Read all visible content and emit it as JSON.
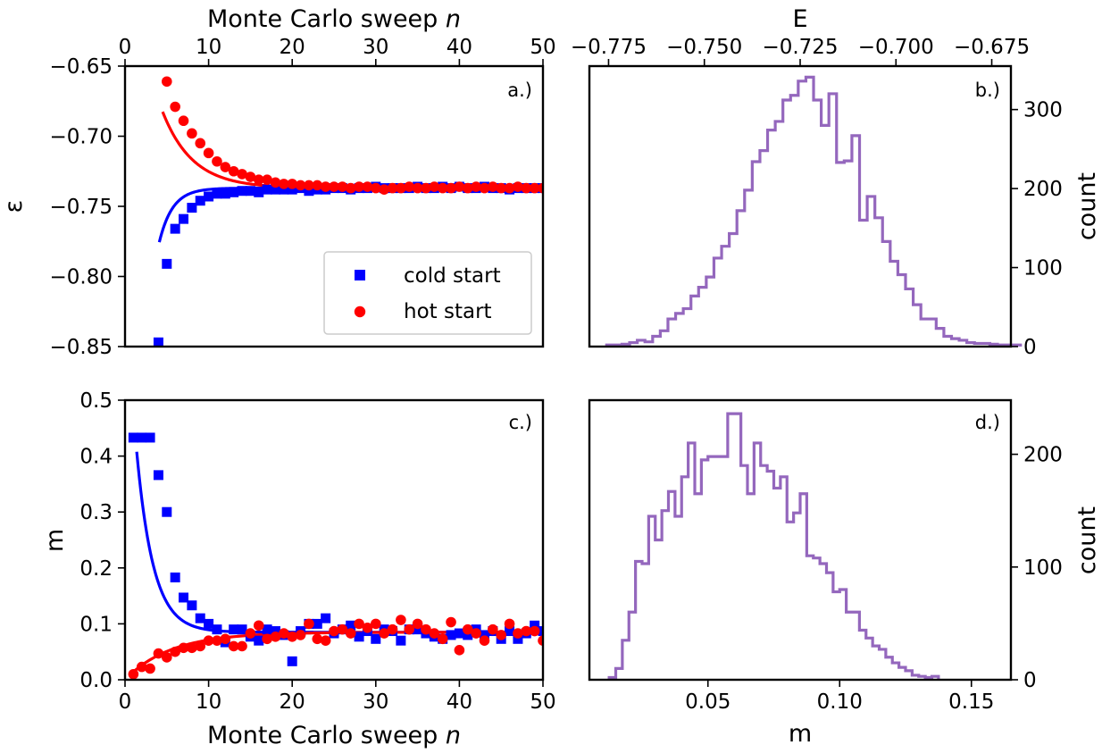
{
  "colors": {
    "cold": "#0000ff",
    "hot": "#ff0000",
    "hist": "#9467bd",
    "axis": "#000000"
  },
  "chart_data": [
    {
      "id": "a",
      "type": "scatter",
      "panel_label": "a.)",
      "title": "",
      "xlabel_top": "Monte Carlo sweep n",
      "ylabel": "ε",
      "xlim": [
        0,
        50
      ],
      "ylim": [
        -0.85,
        -0.65
      ],
      "xticks": [
        0,
        10,
        20,
        30,
        40,
        50
      ],
      "xticklabels": [
        "0",
        "10",
        "20",
        "30",
        "40",
        "50"
      ],
      "yticks": [
        -0.85,
        -0.8,
        -0.75,
        -0.7,
        -0.65
      ],
      "yticklabels": [
        "−0.85",
        "−0.80",
        "−0.75",
        "−0.70",
        "−0.65"
      ],
      "legend": {
        "location": "lower-right",
        "entries": [
          {
            "label": "cold start",
            "marker": "square",
            "color": "#0000ff"
          },
          {
            "label": "hot start",
            "marker": "circle",
            "color": "#ff0000"
          }
        ]
      },
      "series": [
        {
          "name": "cold start",
          "marker": "square",
          "color": "#0000ff",
          "x": [
            4,
            5,
            6,
            7,
            8,
            9,
            10,
            11,
            12,
            13,
            14,
            15,
            16,
            17,
            18,
            19,
            20,
            21,
            22,
            23,
            24,
            25,
            26,
            27,
            28,
            29,
            30,
            31,
            32,
            33,
            34,
            35,
            36,
            37,
            38,
            39,
            40,
            41,
            42,
            43,
            44,
            45,
            46,
            47,
            48,
            49,
            50
          ],
          "y": [
            -0.847,
            -0.791,
            -0.766,
            -0.759,
            -0.751,
            -0.746,
            -0.743,
            -0.741,
            -0.741,
            -0.74,
            -0.739,
            -0.739,
            -0.74,
            -0.738,
            -0.738,
            -0.738,
            -0.738,
            -0.737,
            -0.739,
            -0.738,
            -0.738,
            -0.737,
            -0.737,
            -0.738,
            -0.737,
            -0.737,
            -0.736,
            -0.737,
            -0.737,
            -0.737,
            -0.737,
            -0.736,
            -0.737,
            -0.737,
            -0.736,
            -0.737,
            -0.736,
            -0.737,
            -0.737,
            -0.736,
            -0.737,
            -0.737,
            -0.738,
            -0.737,
            -0.737,
            -0.737,
            -0.737
          ]
        },
        {
          "name": "hot start",
          "marker": "circle",
          "color": "#ff0000",
          "x": [
            5,
            6,
            7,
            8,
            9,
            10,
            11,
            12,
            13,
            14,
            15,
            16,
            17,
            18,
            19,
            20,
            21,
            22,
            23,
            24,
            25,
            26,
            27,
            28,
            29,
            30,
            31,
            32,
            33,
            34,
            35,
            36,
            37,
            38,
            39,
            40,
            41,
            42,
            43,
            44,
            45,
            46,
            47,
            48,
            49,
            50
          ],
          "y": [
            -0.661,
            -0.679,
            -0.689,
            -0.698,
            -0.705,
            -0.712,
            -0.718,
            -0.722,
            -0.725,
            -0.727,
            -0.729,
            -0.731,
            -0.731,
            -0.733,
            -0.734,
            -0.734,
            -0.735,
            -0.735,
            -0.735,
            -0.736,
            -0.736,
            -0.736,
            -0.737,
            -0.736,
            -0.736,
            -0.737,
            -0.738,
            -0.737,
            -0.737,
            -0.736,
            -0.737,
            -0.737,
            -0.736,
            -0.737,
            -0.737,
            -0.736,
            -0.737,
            -0.736,
            -0.737,
            -0.736,
            -0.737,
            -0.737,
            -0.736,
            -0.737,
            -0.737,
            -0.737
          ]
        }
      ],
      "fits": [
        {
          "name": "cold fit",
          "color": "#0000ff",
          "asymptote": -0.737,
          "amplitude": -0.5,
          "tau": 1.6,
          "x_range": [
            4.1,
            50
          ]
        },
        {
          "name": "hot fit",
          "color": "#ff0000",
          "asymptote": -0.737,
          "amplitude": 0.19,
          "tau": 3.6,
          "x_range": [
            4.5,
            50
          ]
        }
      ]
    },
    {
      "id": "b",
      "type": "histogram",
      "panel_label": "b.)",
      "xlabel_top": "E",
      "ylabel_right": "count",
      "xlim": [
        -0.78,
        -0.67
      ],
      "ylim": [
        0,
        355
      ],
      "xticks": [
        -0.775,
        -0.75,
        -0.725,
        -0.7,
        -0.675
      ],
      "xticklabels": [
        "−0.775",
        "−0.750",
        "−0.725",
        "−0.700",
        "−0.675"
      ],
      "yticks": [
        0,
        100,
        200,
        300
      ],
      "yticklabels": [
        "0",
        "100",
        "200",
        "300"
      ],
      "color": "#9467bd",
      "bin_start": -0.7755,
      "bin_width": 0.002,
      "counts": [
        2,
        2,
        3,
        5,
        8,
        6,
        13,
        20,
        35,
        42,
        48,
        64,
        75,
        88,
        112,
        127,
        143,
        172,
        198,
        234,
        248,
        274,
        285,
        312,
        318,
        336,
        341,
        312,
        280,
        320,
        233,
        235,
        267,
        160,
        190,
        163,
        133,
        108,
        91,
        73,
        53,
        35,
        35,
        23,
        13,
        10,
        8,
        5,
        4,
        4,
        3,
        2,
        2,
        2
      ]
    },
    {
      "id": "c",
      "type": "scatter",
      "panel_label": "c.)",
      "xlabel": "Monte Carlo sweep n",
      "ylabel": "m",
      "xlim": [
        0,
        50
      ],
      "ylim": [
        0,
        0.5
      ],
      "xticks": [
        0,
        10,
        20,
        30,
        40,
        50
      ],
      "xticklabels": [
        "0",
        "10",
        "20",
        "30",
        "40",
        "50"
      ],
      "yticks": [
        0,
        0.1,
        0.2,
        0.3,
        0.4,
        0.5
      ],
      "yticklabels": [
        "0.0",
        "0.1",
        "0.2",
        "0.3",
        "0.4",
        "0.5"
      ],
      "series": [
        {
          "name": "cold start",
          "marker": "square",
          "color": "#0000ff",
          "x": [
            1,
            2,
            3,
            4,
            5,
            6,
            7,
            8,
            9,
            10,
            11,
            12,
            13,
            14,
            15,
            16,
            17,
            18,
            19,
            20,
            21,
            22,
            23,
            24,
            25,
            26,
            27,
            28,
            29,
            30,
            31,
            32,
            33,
            34,
            35,
            36,
            37,
            38,
            39,
            40,
            41,
            42,
            43,
            44,
            45,
            46,
            47,
            48,
            49,
            50
          ],
          "y": [
            0.433,
            0.433,
            0.433,
            0.366,
            0.3,
            0.183,
            0.147,
            0.133,
            0.11,
            0.1,
            0.09,
            0.067,
            0.09,
            0.09,
            0.077,
            0.07,
            0.09,
            0.087,
            0.08,
            0.033,
            0.087,
            0.1,
            0.1,
            0.11,
            0.083,
            0.09,
            0.097,
            0.077,
            0.087,
            0.073,
            0.09,
            0.087,
            0.07,
            0.09,
            0.09,
            0.083,
            0.077,
            0.073,
            0.08,
            0.083,
            0.08,
            0.09,
            0.08,
            0.087,
            0.073,
            0.087,
            0.073,
            0.083,
            0.097,
            0.087
          ]
        },
        {
          "name": "hot start",
          "marker": "circle",
          "color": "#ff0000",
          "x": [
            1,
            2,
            3,
            4,
            5,
            6,
            7,
            8,
            9,
            10,
            11,
            12,
            13,
            14,
            15,
            16,
            17,
            18,
            19,
            20,
            21,
            22,
            23,
            24,
            25,
            26,
            27,
            28,
            29,
            30,
            31,
            32,
            33,
            34,
            35,
            36,
            37,
            38,
            39,
            40,
            41,
            42,
            43,
            44,
            45,
            46,
            47,
            48,
            49,
            50
          ],
          "y": [
            0.01,
            0.023,
            0.02,
            0.047,
            0.04,
            0.05,
            0.057,
            0.057,
            0.06,
            0.07,
            0.07,
            0.073,
            0.06,
            0.06,
            0.083,
            0.097,
            0.073,
            0.077,
            0.083,
            0.077,
            0.08,
            0.1,
            0.073,
            0.07,
            0.087,
            0.09,
            0.083,
            0.1,
            0.093,
            0.1,
            0.083,
            0.09,
            0.107,
            0.09,
            0.1,
            0.09,
            0.083,
            0.073,
            0.103,
            0.053,
            0.09,
            0.083,
            0.07,
            0.09,
            0.08,
            0.1,
            0.083,
            0.087,
            0.087,
            0.07
          ]
        }
      ],
      "fits": [
        {
          "name": "cold fit",
          "color": "#0000ff",
          "asymptote": 0.085,
          "amplitude": 0.65,
          "tau": 2.0,
          "x_range": [
            1.4,
            50
          ]
        },
        {
          "name": "hot fit",
          "color": "#ff0000",
          "asymptote": 0.085,
          "amplitude": -0.085,
          "tau": 5.5,
          "x_range": [
            0.6,
            50
          ]
        }
      ]
    },
    {
      "id": "d",
      "type": "histogram",
      "panel_label": "d.)",
      "xlabel": "m",
      "ylabel_right": "count",
      "xlim": [
        0.005,
        0.165
      ],
      "ylim": [
        0,
        248
      ],
      "xticks": [
        0.05,
        0.1,
        0.15
      ],
      "xticklabels": [
        "0.05",
        "0.10",
        "0.15"
      ],
      "yticks": [
        0,
        100,
        200
      ],
      "yticklabels": [
        "0",
        "100",
        "200"
      ],
      "color": "#9467bd",
      "bin_start": 0.0125,
      "bin_width": 0.0025,
      "counts": [
        2,
        10,
        35,
        60,
        105,
        103,
        145,
        124,
        150,
        167,
        145,
        180,
        210,
        165,
        195,
        198,
        198,
        198,
        236,
        236,
        190,
        165,
        210,
        190,
        185,
        170,
        180,
        140,
        148,
        165,
        110,
        108,
        103,
        95,
        78,
        80,
        60,
        60,
        44,
        37,
        30,
        27,
        20,
        15,
        11,
        8,
        4,
        3,
        2,
        3
      ]
    }
  ]
}
